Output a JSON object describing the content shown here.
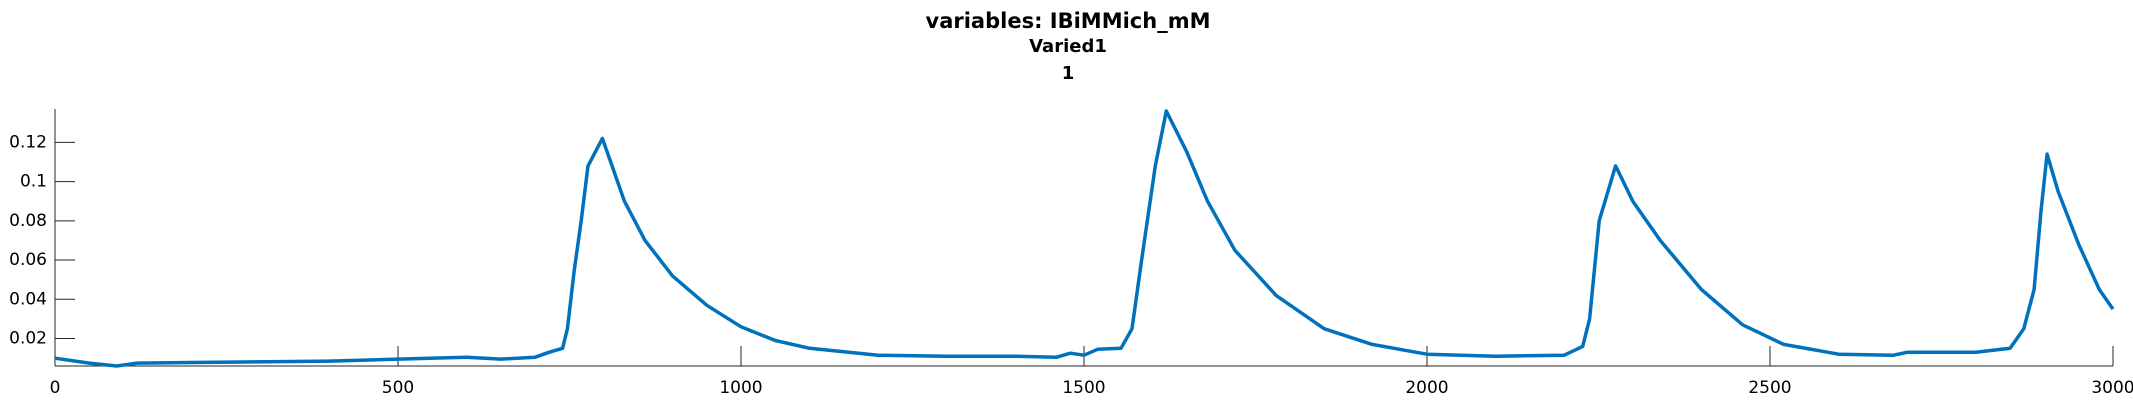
{
  "chart_data": {
    "type": "line",
    "title": "variables: IBiMMich_mM",
    "subtitle": "Varied1",
    "subtitle2": "1",
    "x": [
      0,
      50,
      90,
      120,
      200,
      400,
      500,
      600,
      650,
      700,
      720,
      740,
      747,
      757,
      767,
      777,
      798,
      810,
      830,
      860,
      900,
      950,
      1000,
      1050,
      1100,
      1200,
      1300,
      1400,
      1460,
      1480,
      1500,
      1520,
      1554,
      1570,
      1584,
      1604,
      1620,
      1650,
      1680,
      1720,
      1780,
      1850,
      1920,
      2000,
      2100,
      2200,
      2227,
      2237,
      2251,
      2275,
      2300,
      2340,
      2400,
      2460,
      2520,
      2600,
      2680,
      2700,
      2800,
      2850,
      2870,
      2885,
      2895,
      2904,
      2920,
      2950,
      2980,
      3000
    ],
    "series": [
      {
        "name": "IBiMMich_mM",
        "color": "#0072bd",
        "values": [
          0.01,
          0.0075,
          0.006,
          0.0075,
          0.0078,
          0.0085,
          0.0095,
          0.0105,
          0.0095,
          0.0105,
          0.013,
          0.015,
          0.025,
          0.055,
          0.08,
          0.108,
          0.122,
          0.11,
          0.09,
          0.07,
          0.052,
          0.037,
          0.026,
          0.019,
          0.015,
          0.0115,
          0.011,
          0.011,
          0.0105,
          0.0125,
          0.0115,
          0.0145,
          0.015,
          0.025,
          0.06,
          0.108,
          0.136,
          0.115,
          0.09,
          0.065,
          0.042,
          0.025,
          0.017,
          0.012,
          0.011,
          0.0115,
          0.016,
          0.03,
          0.08,
          0.108,
          0.09,
          0.07,
          0.045,
          0.027,
          0.017,
          0.012,
          0.0115,
          0.013,
          0.013,
          0.015,
          0.025,
          0.045,
          0.085,
          0.114,
          0.095,
          0.068,
          0.045,
          0.035
        ]
      }
    ],
    "xlim": [
      0,
      3000
    ],
    "xticks": [
      0,
      500,
      1000,
      1500,
      2000,
      2500,
      3000
    ],
    "ylim": [
      0.006,
      0.137
    ],
    "yticks": [
      0.02,
      0.04,
      0.06,
      0.08,
      0.1,
      0.12
    ]
  }
}
